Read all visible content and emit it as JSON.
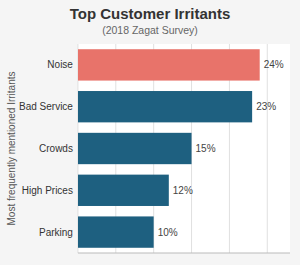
{
  "chart_data": {
    "type": "bar",
    "orientation": "horizontal",
    "title": "Top Customer Irritants",
    "subtitle": "(2018 Zagat Survey)",
    "ylabel": "Most frequently mentioned Irritants",
    "categories": [
      "Noise",
      "Bad Service",
      "Crowds",
      "High Prices",
      "Parking"
    ],
    "values": [
      24,
      23,
      15,
      12,
      10
    ],
    "value_labels": [
      "24%",
      "23%",
      "15%",
      "12%",
      "10%"
    ],
    "colors": [
      "#E8736A",
      "#1E6080",
      "#1E6080",
      "#1E6080",
      "#1E6080"
    ],
    "xlim": [
      0,
      28
    ],
    "xticks": [
      0,
      5,
      10,
      15,
      20,
      25
    ],
    "grid": true,
    "data_labels": true,
    "tick_labels": "y"
  }
}
